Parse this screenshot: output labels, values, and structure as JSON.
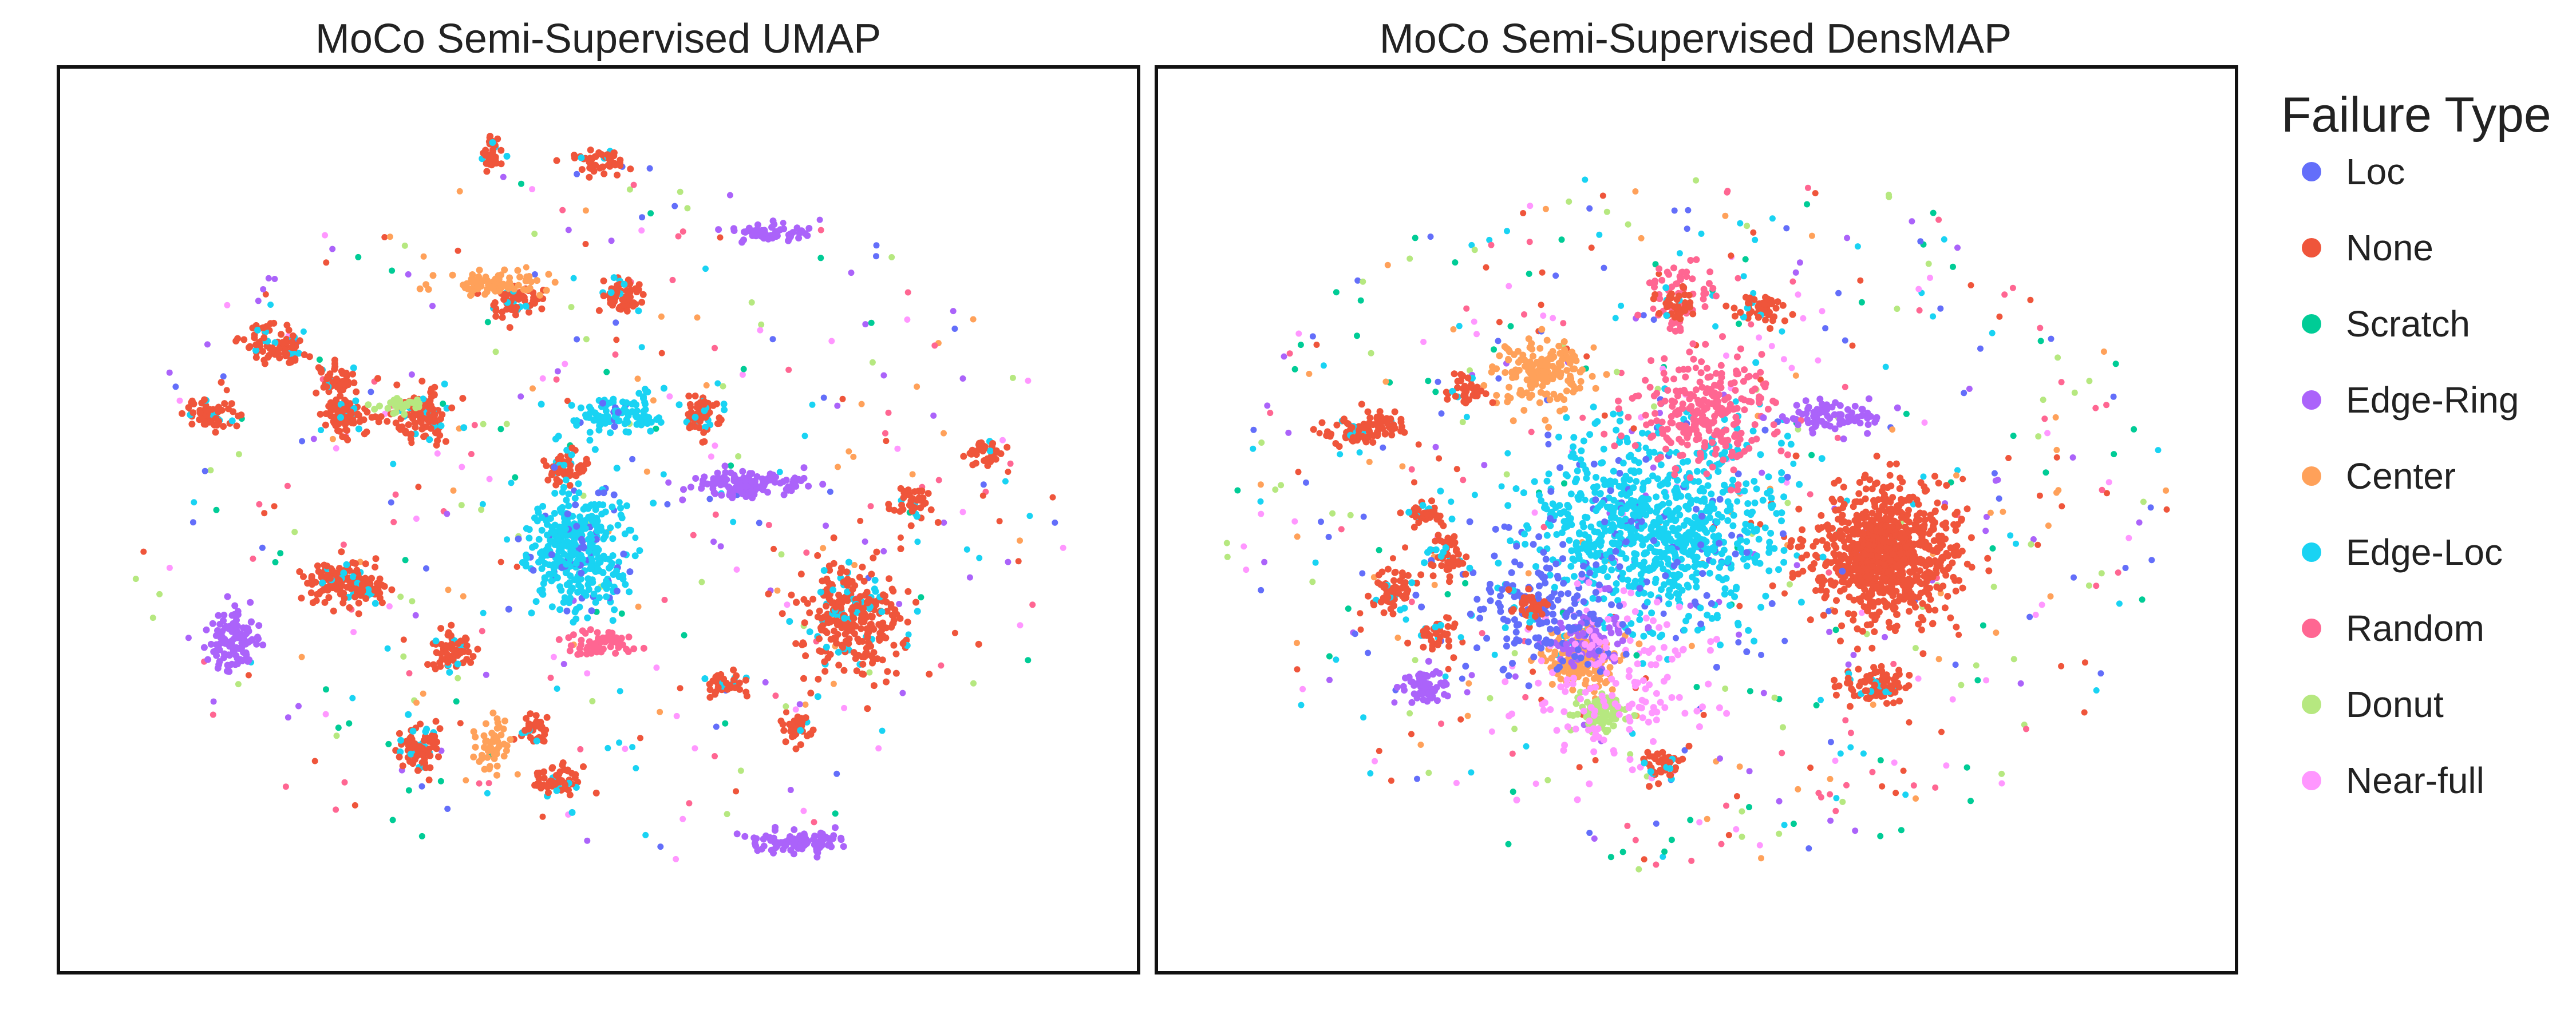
{
  "chart_data": {
    "type": "scatter",
    "legend": {
      "title": "Failure Type",
      "placement": "right",
      "entries": [
        {
          "name": "Loc",
          "color": "#636EFA"
        },
        {
          "name": "None",
          "color": "#EF553B"
        },
        {
          "name": "Scratch",
          "color": "#00CC96"
        },
        {
          "name": "Edge-Ring",
          "color": "#AB63FA"
        },
        {
          "name": "Center",
          "color": "#FFA15A"
        },
        {
          "name": "Edge-Loc",
          "color": "#19D3F3"
        },
        {
          "name": "Random",
          "color": "#FF6692"
        },
        {
          "name": "Donut",
          "color": "#B6E880"
        },
        {
          "name": "Near-full",
          "color": "#FF97FF"
        }
      ]
    },
    "panels": [
      {
        "title": "MoCo Semi-Supervised UMAP",
        "axes_visible": false,
        "xlim": [
          0,
          100
        ],
        "ylim": [
          0,
          100
        ],
        "clusters": [
          {
            "category": "None",
            "x": 74,
            "y": 39,
            "sx": 2.6,
            "sy": 3.2,
            "n": 320,
            "mix": "Edge-Loc"
          },
          {
            "category": "None",
            "x": 33,
            "y": 62,
            "sx": 1.3,
            "sy": 1.6,
            "n": 120,
            "mix": "Edge-Loc"
          },
          {
            "category": "None",
            "x": 26,
            "y": 62,
            "sx": 1.1,
            "sy": 1.1,
            "n": 90,
            "mix": "Edge-Loc"
          },
          {
            "category": "None",
            "x": 33,
            "y": 24,
            "sx": 1.0,
            "sy": 1.4,
            "n": 90,
            "mix": "Edge-Loc"
          },
          {
            "category": "None",
            "x": 19,
            "y": 70,
            "sx": 1.6,
            "sy": 1.2,
            "n": 90,
            "mix": "Edge-Loc"
          },
          {
            "category": "None",
            "x": 52,
            "y": 76,
            "sx": 1.0,
            "sy": 1.0,
            "n": 70,
            "mix": "Edge-Loc"
          },
          {
            "category": "None",
            "x": 47,
            "y": 56,
            "sx": 1.0,
            "sy": 1.0,
            "n": 60,
            "mix": "Edge-Loc"
          },
          {
            "category": "None",
            "x": 60,
            "y": 62,
            "sx": 1.0,
            "sy": 1.2,
            "n": 60,
            "mix": "Edge-Loc"
          },
          {
            "category": "None",
            "x": 42,
            "y": 75,
            "sx": 1.2,
            "sy": 0.9,
            "n": 60,
            "mix": "Edge-Loc"
          },
          {
            "category": "None",
            "x": 40,
            "y": 92,
            "sx": 0.6,
            "sy": 1.0,
            "n": 40,
            "mix": "Edge-Loc"
          },
          {
            "category": "None",
            "x": 50,
            "y": 91,
            "sx": 1.3,
            "sy": 0.8,
            "n": 50,
            "mix": "Edge-Loc"
          },
          {
            "category": "None",
            "x": 25,
            "y": 43,
            "sx": 1.5,
            "sy": 1.3,
            "n": 110,
            "mix": "Edge-Loc"
          },
          {
            "category": "None",
            "x": 36,
            "y": 35,
            "sx": 1.0,
            "sy": 1.0,
            "n": 70,
            "mix": "Edge-Loc"
          },
          {
            "category": "None",
            "x": 13,
            "y": 62,
            "sx": 1.2,
            "sy": 1.0,
            "n": 60,
            "mix": "Edge-Loc"
          },
          {
            "category": "None",
            "x": 25,
            "y": 66,
            "sx": 1.0,
            "sy": 1.0,
            "n": 50,
            "mix": "Edge-Loc"
          },
          {
            "category": "None",
            "x": 28,
            "y": 42,
            "sx": 0.9,
            "sy": 0.9,
            "n": 50,
            "mix": "Edge-Loc"
          },
          {
            "category": "None",
            "x": 46,
            "y": 20,
            "sx": 1.2,
            "sy": 1.0,
            "n": 60,
            "mix": "Edge-Loc"
          },
          {
            "category": "None",
            "x": 44,
            "y": 26,
            "sx": 0.9,
            "sy": 0.9,
            "n": 40,
            "mix": "Edge-Loc"
          },
          {
            "category": "None",
            "x": 62,
            "y": 31,
            "sx": 0.9,
            "sy": 0.9,
            "n": 40,
            "mix": "Edge-Loc"
          },
          {
            "category": "None",
            "x": 69,
            "y": 26,
            "sx": 0.9,
            "sy": 0.9,
            "n": 40,
            "mix": "Edge-Loc"
          },
          {
            "category": "None",
            "x": 80,
            "y": 52,
            "sx": 1.0,
            "sy": 1.0,
            "n": 40,
            "mix": "Edge-Loc"
          },
          {
            "category": "None",
            "x": 87,
            "y": 58,
            "sx": 0.9,
            "sy": 1.0,
            "n": 40,
            "mix": "Edge-Loc"
          },
          {
            "category": "Edge-Ring",
            "x": 64,
            "y": 54,
            "sx": 2.6,
            "sy": 0.8,
            "n": 140
          },
          {
            "category": "Edge-Ring",
            "x": 69,
            "y": 13,
            "sx": 2.2,
            "sy": 0.7,
            "n": 110
          },
          {
            "category": "Edge-Ring",
            "x": 15,
            "y": 36,
            "sx": 1.2,
            "sy": 1.8,
            "n": 110
          },
          {
            "category": "Edge-Ring",
            "x": 67,
            "y": 83,
            "sx": 1.6,
            "sy": 0.5,
            "n": 60
          },
          {
            "category": "Center",
            "x": 40,
            "y": 77,
            "sx": 2.0,
            "sy": 0.7,
            "n": 80
          },
          {
            "category": "Center",
            "x": 40,
            "y": 24,
            "sx": 0.7,
            "sy": 2.0,
            "n": 50
          },
          {
            "category": "Edge-Loc",
            "x": 48,
            "y": 46,
            "sx": 2.4,
            "sy": 3.6,
            "n": 380,
            "mix": "Loc"
          },
          {
            "category": "Edge-Loc",
            "x": 52,
            "y": 62,
            "sx": 2.2,
            "sy": 1.2,
            "n": 110,
            "mix": "Loc"
          },
          {
            "category": "Random",
            "x": 50,
            "y": 36,
            "sx": 1.6,
            "sy": 0.8,
            "n": 60
          },
          {
            "category": "Donut",
            "x": 31,
            "y": 63,
            "sx": 1.0,
            "sy": 0.5,
            "n": 30
          }
        ],
        "background_points": 420
      },
      {
        "title": "MoCo Semi-Supervised DensMAP",
        "axes_visible": false,
        "xlim": [
          0,
          100
        ],
        "ylim": [
          0,
          100
        ],
        "clusters": [
          {
            "category": "None",
            "x": 68,
            "y": 46,
            "sx": 3.4,
            "sy": 3.6,
            "n": 900
          },
          {
            "category": "Edge-Loc",
            "x": 46,
            "y": 49,
            "sx": 6.0,
            "sy": 5.5,
            "n": 900,
            "mix": "Loc"
          },
          {
            "category": "Random",
            "x": 51,
            "y": 62,
            "sx": 3.2,
            "sy": 3.2,
            "n": 260
          },
          {
            "category": "Random",
            "x": 48,
            "y": 76,
            "sx": 1.6,
            "sy": 2.6,
            "n": 60
          },
          {
            "category": "Center",
            "x": 35,
            "y": 67,
            "sx": 2.2,
            "sy": 1.8,
            "n": 180
          },
          {
            "category": "Center",
            "x": 39,
            "y": 34,
            "sx": 1.8,
            "sy": 1.6,
            "n": 150
          },
          {
            "category": "Donut",
            "x": 41,
            "y": 28,
            "sx": 1.2,
            "sy": 1.1,
            "n": 100
          },
          {
            "category": "Edge-Ring",
            "x": 63,
            "y": 62,
            "sx": 2.4,
            "sy": 0.9,
            "n": 80
          },
          {
            "category": "Edge-Ring",
            "x": 24,
            "y": 31,
            "sx": 1.2,
            "sy": 1.0,
            "n": 60
          },
          {
            "category": "Edge-Ring",
            "x": 40,
            "y": 36,
            "sx": 2.0,
            "sy": 2.0,
            "n": 80,
            "mix": "Loc"
          },
          {
            "category": "Near-full",
            "x": 42,
            "y": 31,
            "sx": 4.5,
            "sy": 5.5,
            "n": 160
          },
          {
            "category": "Loc",
            "x": 35,
            "y": 40,
            "sx": 3.5,
            "sy": 3.5,
            "n": 160
          },
          {
            "category": "None",
            "x": 67,
            "y": 31,
            "sx": 1.6,
            "sy": 1.0,
            "n": 90,
            "mix": "Edge-Loc"
          },
          {
            "category": "None",
            "x": 17,
            "y": 60,
            "sx": 1.4,
            "sy": 0.9,
            "n": 60,
            "mix": "Edge-Loc"
          },
          {
            "category": "None",
            "x": 21,
            "y": 42,
            "sx": 1.0,
            "sy": 1.2,
            "n": 60,
            "mix": "Edge-Loc"
          },
          {
            "category": "None",
            "x": 25,
            "y": 37,
            "sx": 1.0,
            "sy": 1.0,
            "n": 40,
            "mix": "Edge-Loc"
          },
          {
            "category": "None",
            "x": 20,
            "y": 61,
            "sx": 1.0,
            "sy": 0.9,
            "n": 40,
            "mix": "Edge-Loc"
          },
          {
            "category": "None",
            "x": 26,
            "y": 46,
            "sx": 1.0,
            "sy": 1.2,
            "n": 50,
            "mix": "Edge-Loc"
          },
          {
            "category": "None",
            "x": 47,
            "y": 22,
            "sx": 1.0,
            "sy": 0.9,
            "n": 50,
            "mix": "Edge-Loc"
          },
          {
            "category": "None",
            "x": 48,
            "y": 75,
            "sx": 0.9,
            "sy": 0.9,
            "n": 40,
            "mix": "Edge-Loc"
          },
          {
            "category": "None",
            "x": 56,
            "y": 74,
            "sx": 1.2,
            "sy": 1.0,
            "n": 50,
            "mix": "Edge-Loc"
          },
          {
            "category": "None",
            "x": 28,
            "y": 65,
            "sx": 0.9,
            "sy": 0.9,
            "n": 40,
            "mix": "Edge-Loc"
          },
          {
            "category": "None",
            "x": 34,
            "y": 40,
            "sx": 1.0,
            "sy": 1.0,
            "n": 40,
            "mix": "Edge-Loc"
          },
          {
            "category": "None",
            "x": 24,
            "y": 51,
            "sx": 0.9,
            "sy": 0.9,
            "n": 40,
            "mix": "Edge-Loc"
          }
        ],
        "background_points": 650
      }
    ]
  }
}
